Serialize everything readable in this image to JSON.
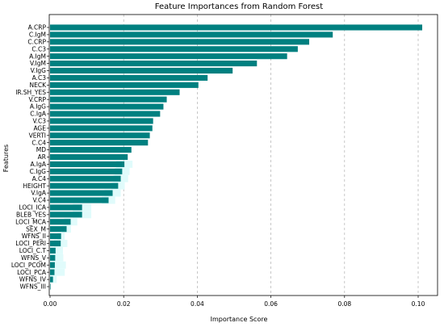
{
  "chart_data": {
    "type": "bar",
    "orientation": "horizontal",
    "title": "Feature Importances from Random Forest",
    "xlabel": "Importance Score",
    "ylabel": "Features",
    "xlim": [
      0,
      0.106
    ],
    "xticks": [
      "0.00",
      "0.02",
      "0.04",
      "0.06",
      "0.08",
      "0.10"
    ],
    "grid": "x-dashed",
    "bar_color": "#008080",
    "error_color": "#e0fbfb",
    "categories": [
      "A.CRP",
      "C.IgM",
      "C.CRP",
      "C.C3",
      "A.IgM",
      "V.IgM",
      "V.IgG",
      "A.C3",
      "NECK",
      "IR.SH_YES",
      "V.CRP",
      "A.IgG",
      "C.IgA",
      "V.C3",
      "AGE",
      "VERTI",
      "C.C4",
      "MD",
      "AR",
      "A.IgA",
      "C.IgG",
      "A.C4",
      "HEIGHT",
      "V.IgA",
      "V.C4",
      "LOCI_ICA",
      "BLEB_YES",
      "LOCI_MCA",
      "SEX_M",
      "WFNS_II",
      "LOCI_PERI",
      "LOCI_C.T",
      "WFNS_V",
      "LOCI_PCOM",
      "LOCI_PCA",
      "WFNS_IV",
      "WFNS_III"
    ],
    "values": [
      0.1011,
      0.0768,
      0.0704,
      0.0673,
      0.0644,
      0.0562,
      0.0496,
      0.0428,
      0.0403,
      0.0352,
      0.0317,
      0.0308,
      0.0299,
      0.028,
      0.0278,
      0.0271,
      0.0266,
      0.0221,
      0.0211,
      0.0202,
      0.0196,
      0.0192,
      0.0185,
      0.017,
      0.0159,
      0.0087,
      0.0087,
      0.0056,
      0.0045,
      0.003,
      0.0029,
      0.0015,
      0.0014,
      0.0013,
      0.0012,
      0.0008,
      0.0001
    ],
    "errors": [
      0.0,
      0.0,
      0.0,
      0.0,
      0.0,
      0.0,
      0.0,
      0.0,
      0.0,
      0.0,
      0.0,
      0.0,
      0.0,
      0.0,
      0.0,
      0.0,
      0.0,
      0.0,
      0.0,
      0.0022,
      0.002,
      0.002,
      0.0018,
      0.0022,
      0.0018,
      0.0025,
      0.0025,
      0.0018,
      0.0012,
      0.001,
      0.0018,
      0.002,
      0.0022,
      0.003,
      0.0028,
      0.001,
      0.0
    ]
  }
}
